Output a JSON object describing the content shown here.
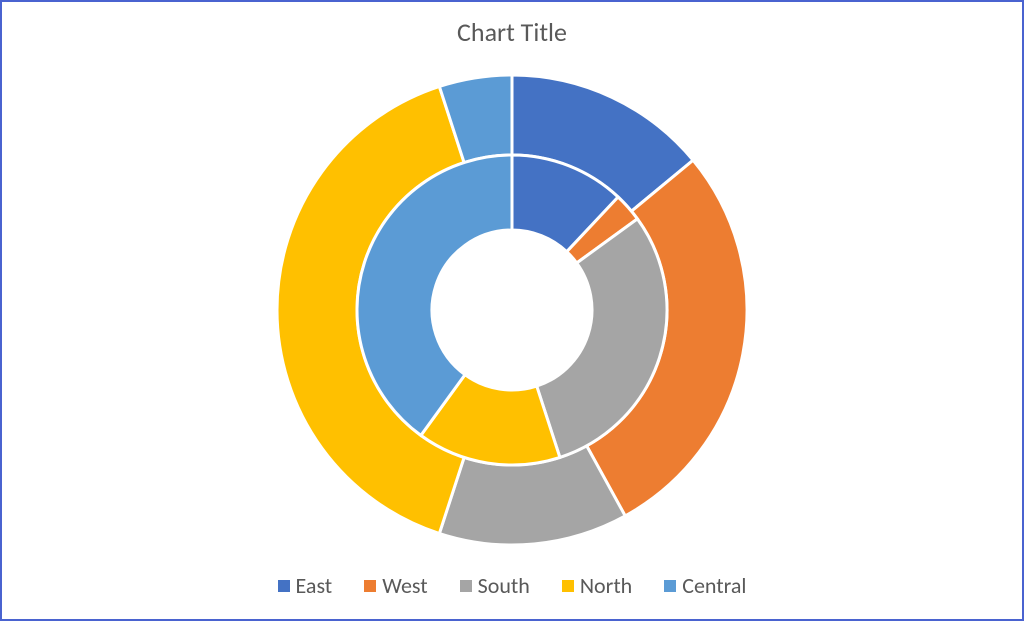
{
  "chart": {
    "type": "double-doughnut",
    "title": "Chart Title",
    "title_fontsize": 26,
    "title_color": "#595959",
    "frame_border_color": "#4a63d0",
    "background_color": "#ffffff",
    "slice_border_color": "#ffffff",
    "slice_border_width": 3,
    "start_angle_deg": -90,
    "categories": [
      "East",
      "West",
      "South",
      "North",
      "Central"
    ],
    "category_colors": [
      "#4472c4",
      "#ed7d31",
      "#a5a5a5",
      "#ffc000",
      "#5b9bd5"
    ],
    "outer_ring": {
      "values_pct": [
        14,
        28,
        13,
        40,
        5
      ],
      "outer_radius": 235,
      "inner_radius": 155
    },
    "inner_ring": {
      "values_pct": [
        12,
        3,
        30,
        15,
        40
      ],
      "outer_radius": 155,
      "inner_radius": 80
    },
    "legend": {
      "items": [
        {
          "label": "East"
        },
        {
          "label": "West"
        },
        {
          "label": "South"
        },
        {
          "label": "North"
        },
        {
          "label": "Central"
        }
      ],
      "fontsize": 22,
      "text_color": "#595959",
      "swatch_size": 12
    }
  }
}
